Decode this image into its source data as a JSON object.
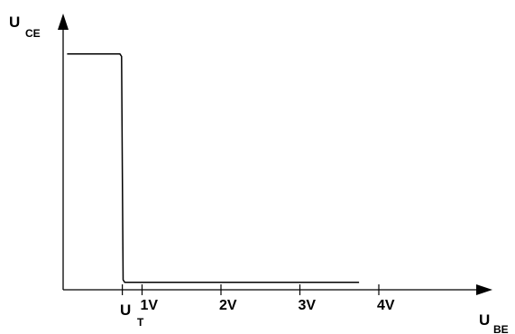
{
  "chart_data": {
    "type": "line",
    "y_axis_label": {
      "main": "U",
      "sub": "CE"
    },
    "x_axis_label": {
      "main": "U",
      "sub": "BE"
    },
    "threshold_label": {
      "main": "U",
      "sub": "T"
    },
    "x_ticks": [
      {
        "value": 1,
        "label": "1V"
      },
      {
        "value": 2,
        "label": "2V"
      },
      {
        "value": 3,
        "label": "3V"
      },
      {
        "value": 4,
        "label": "4V"
      }
    ],
    "xlim": [
      0,
      5.1
    ],
    "ylim": [
      0,
      1.05
    ],
    "threshold_x": 0.75,
    "series": [
      {
        "x": [
          0.05,
          0.72,
          0.74,
          0.75,
          0.76,
          0.78,
          0.8,
          3.75
        ],
        "y": [
          0.95,
          0.95,
          0.94,
          0.5,
          0.04,
          0.03,
          0.03,
          0.03
        ]
      }
    ],
    "grid": false,
    "legend": false,
    "colors": {
      "line": "#000000",
      "axis": "#000000"
    }
  }
}
